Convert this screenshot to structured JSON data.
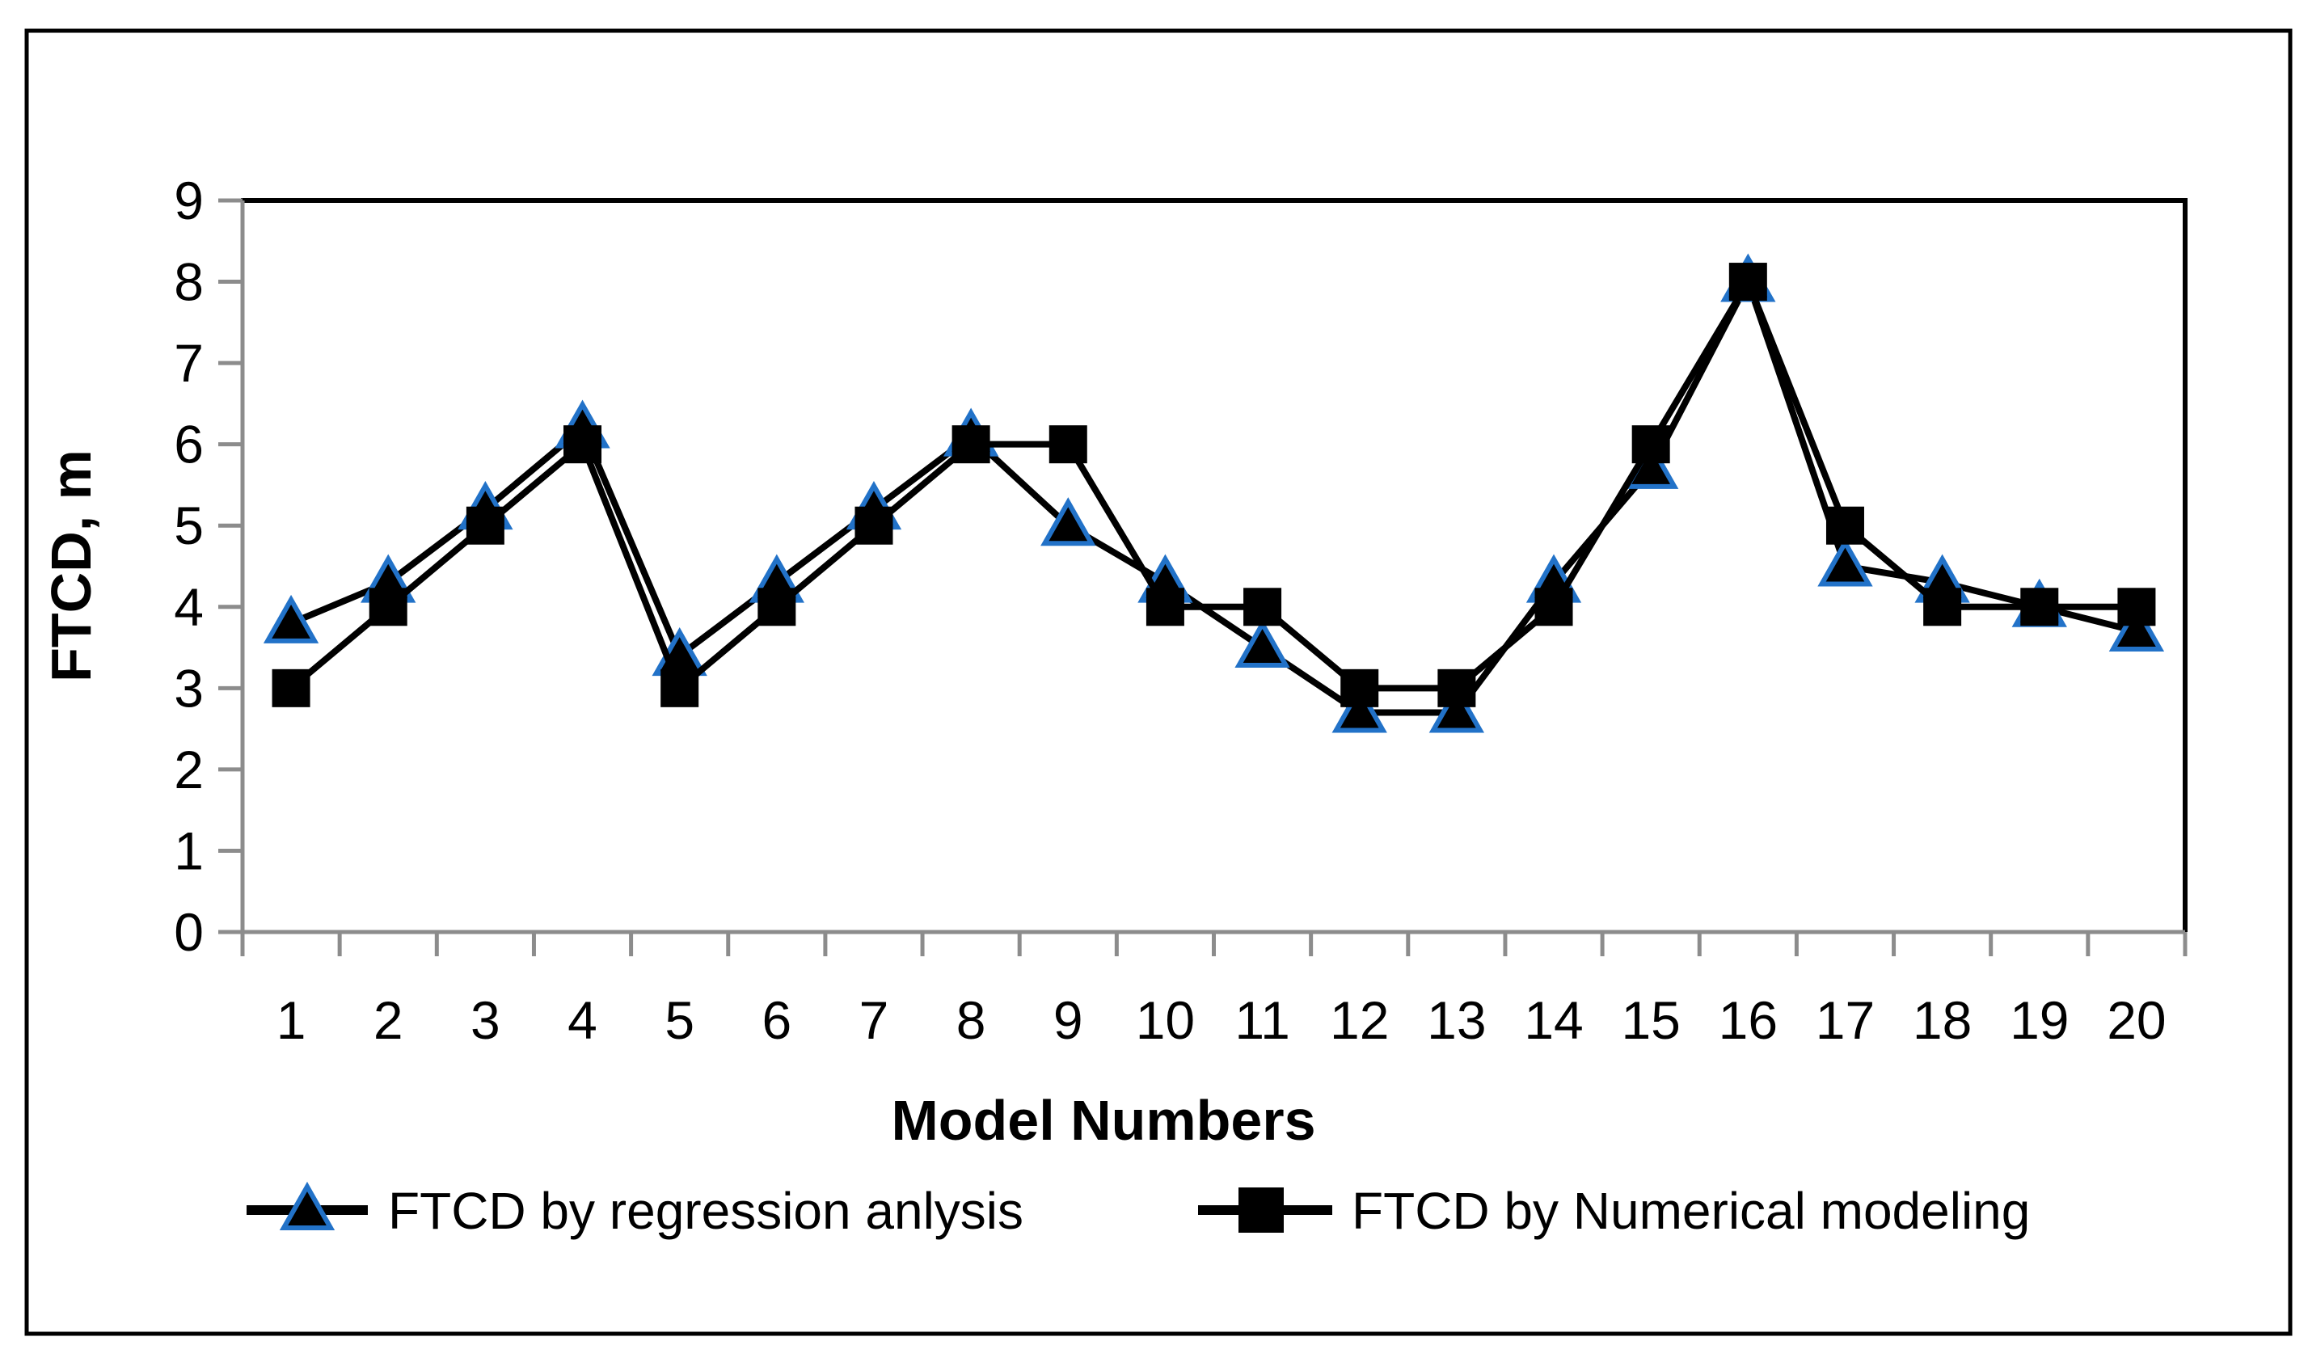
{
  "figure": {
    "background": "#ffffff",
    "border_color": "#000000",
    "axis_color": "#8C8C8C",
    "series_line_color": "#000000",
    "triangle_outline_color": "#2272C8",
    "triangle_fill_color": "#000000",
    "square_fill_color": "#000000"
  },
  "chart_data": {
    "type": "line",
    "title": "",
    "xlabel": "Model Numbers",
    "ylabel": "FTCD, m",
    "x": [
      1,
      2,
      3,
      4,
      5,
      6,
      7,
      8,
      9,
      10,
      11,
      12,
      13,
      14,
      15,
      16,
      17,
      18,
      19,
      20
    ],
    "yticks": [
      0,
      1,
      2,
      3,
      4,
      5,
      6,
      7,
      8,
      9
    ],
    "ylim": [
      0,
      9
    ],
    "grid": false,
    "legend_position": "bottom",
    "series": [
      {
        "name": "FTCD by regression anlysis",
        "marker": "triangle",
        "values": [
          3.8,
          4.3,
          5.2,
          6.2,
          3.4,
          4.3,
          5.2,
          6.1,
          5.0,
          4.3,
          3.5,
          2.7,
          2.7,
          4.3,
          5.7,
          8.0,
          4.5,
          4.3,
          4.0,
          3.7
        ]
      },
      {
        "name": "FTCD by Numerical modeling",
        "marker": "square",
        "values": [
          3,
          4,
          5,
          6,
          3,
          4,
          5,
          6,
          6,
          4,
          4,
          3,
          3,
          4,
          6,
          8,
          5,
          4,
          4,
          4
        ]
      }
    ]
  }
}
